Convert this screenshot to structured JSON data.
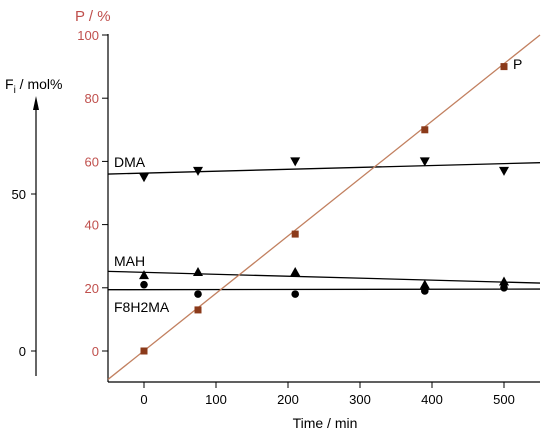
{
  "chart_data": {
    "type": "scatter",
    "title": "",
    "left_axis": {
      "label": "F",
      "label_sub": "i",
      "label_suffix": " / mol%",
      "ticks": [
        "0",
        "50"
      ]
    },
    "p_axis": {
      "label": "P / %",
      "range": [
        0,
        100
      ],
      "ticks": [
        "0",
        "20",
        "40",
        "60",
        "80",
        "100"
      ],
      "color": "#c0504d"
    },
    "x_axis": {
      "label": "Time  / min",
      "range": [
        -50,
        550
      ],
      "ticks": [
        "0",
        "100",
        "200",
        "300",
        "400",
        "500"
      ]
    },
    "series": [
      {
        "name": "DMA",
        "marker": "triangle-down",
        "x": [
          0,
          75,
          210,
          390,
          500
        ],
        "y": [
          55,
          57,
          60,
          60,
          57
        ],
        "fit": [
          [
            -50,
            56.0
          ],
          [
            550,
            59.6
          ]
        ],
        "color": "#000000"
      },
      {
        "name": "MAH",
        "marker": "triangle-up",
        "x": [
          0,
          75,
          210,
          390,
          500
        ],
        "y": [
          24,
          25,
          25,
          21,
          22
        ],
        "fit": [
          [
            -50,
            25.2
          ],
          [
            550,
            21.5
          ]
        ],
        "color": "#000000"
      },
      {
        "name": "F8H2MA",
        "marker": "circle",
        "x": [
          0,
          75,
          210,
          390,
          500
        ],
        "y": [
          21,
          18,
          18,
          19,
          20
        ],
        "fit": [
          [
            -50,
            19.4
          ],
          [
            550,
            19.6
          ]
        ],
        "color": "#000000"
      },
      {
        "name": "P",
        "marker": "square",
        "x": [
          0,
          75,
          210,
          390,
          500
        ],
        "y": [
          0,
          13,
          37,
          70,
          90
        ],
        "fit": [
          [
            -50,
            -9
          ],
          [
            550,
            100
          ]
        ],
        "color": "#8b3a1a",
        "fit_color": "#c28060"
      }
    ]
  }
}
